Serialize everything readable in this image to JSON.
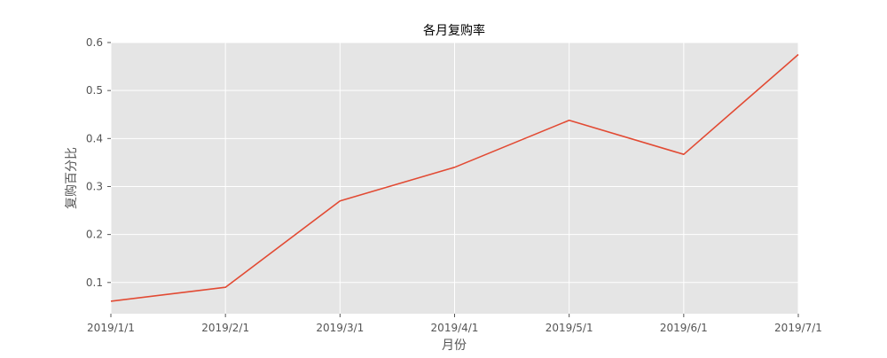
{
  "chart_data": {
    "type": "line",
    "title": "各月复购率",
    "xlabel": "月份",
    "ylabel": "复购百分比",
    "categories": [
      "2019/1/1",
      "2019/2/1",
      "2019/3/1",
      "2019/4/1",
      "2019/5/1",
      "2019/6/1",
      "2019/7/1"
    ],
    "series": [
      {
        "values": [
          0.061,
          0.09,
          0.27,
          0.34,
          0.438,
          0.367,
          0.575
        ],
        "color": "#E24A33"
      }
    ],
    "ylim": [
      0.035,
      0.6
    ],
    "yticks": [
      0.1,
      0.2,
      0.3,
      0.4,
      0.5,
      0.6
    ],
    "ytick_labels": [
      "0.1",
      "0.2",
      "0.3",
      "0.4",
      "0.5",
      "0.6"
    ],
    "grid": true,
    "legend": "none",
    "background_color": "#E5E5E5",
    "grid_color": "#FFFFFF"
  }
}
